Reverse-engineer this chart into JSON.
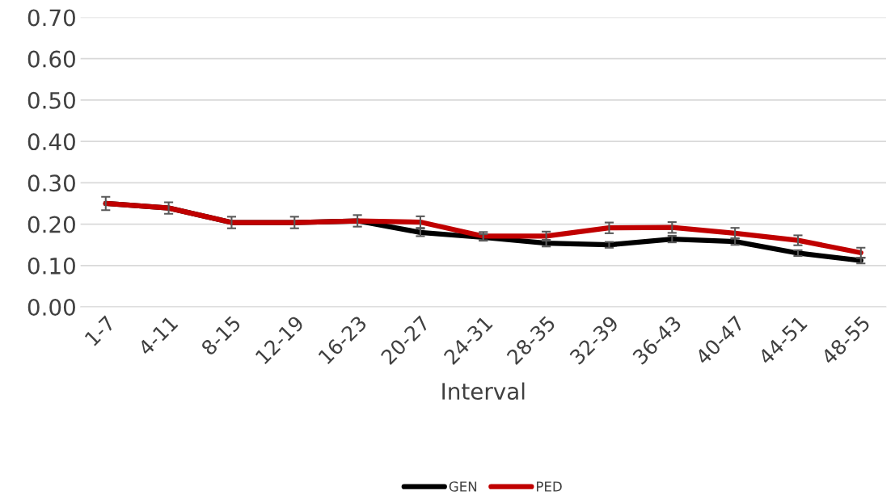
{
  "chart_data": {
    "type": "line",
    "xlabel": "Interval",
    "categories": [
      "1-7",
      "4-11",
      "8-15",
      "12-19",
      "16-23",
      "20-27",
      "24-31",
      "28-35",
      "32-39",
      "36-43",
      "40-47",
      "44-51",
      "48-55"
    ],
    "series": [
      {
        "name": "GEN",
        "color": "#000000",
        "values": [
          0.25,
          0.239,
          0.204,
          0.204,
          0.208,
          0.18,
          0.168,
          0.154,
          0.15,
          0.164,
          0.158,
          0.13,
          0.112
        ],
        "errors": [
          null,
          null,
          null,
          null,
          null,
          0.009,
          0.008,
          0.008,
          0.007,
          0.008,
          0.008,
          0.007,
          0.007
        ]
      },
      {
        "name": "PED",
        "color": "#c00000",
        "values": [
          0.25,
          0.239,
          0.204,
          0.204,
          0.208,
          0.205,
          0.171,
          0.171,
          0.191,
          0.192,
          0.178,
          0.161,
          0.131
        ],
        "errors": [
          0.016,
          0.014,
          0.014,
          0.014,
          0.014,
          0.014,
          0.01,
          0.011,
          0.013,
          0.013,
          0.013,
          0.012,
          0.012
        ]
      }
    ],
    "ylim": [
      0,
      0.7
    ],
    "yticks": [
      {
        "value": 0,
        "label": "0.00"
      },
      {
        "value": 0.1,
        "label": "0.10"
      },
      {
        "value": 0.2,
        "label": "0.20"
      },
      {
        "value": 0.3,
        "label": "0.30"
      },
      {
        "value": 0.4,
        "label": "0.40"
      },
      {
        "value": 0.5,
        "label": "0.50"
      },
      {
        "value": 0.6,
        "label": "0.60"
      },
      {
        "value": 0.7,
        "label": "0.70"
      }
    ],
    "grid": "y",
    "legend": "bottom",
    "marker": "none",
    "line_style": "solid"
  }
}
